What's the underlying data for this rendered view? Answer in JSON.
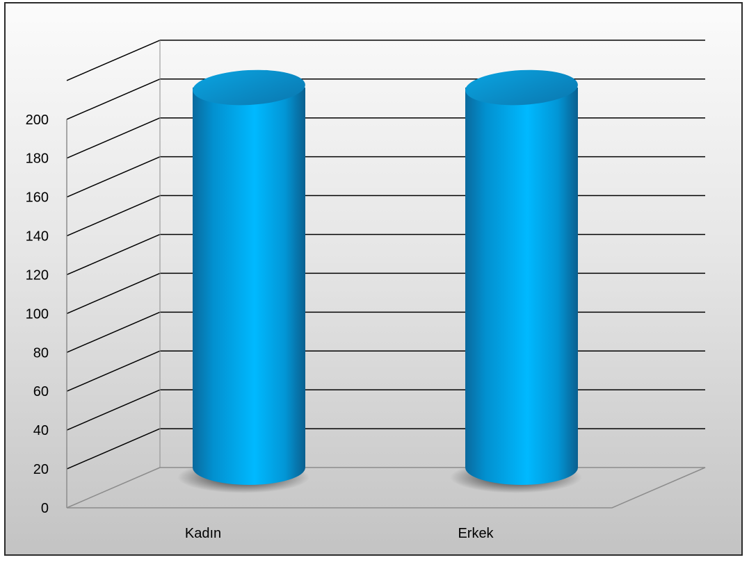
{
  "chart_data": {
    "type": "bar",
    "style": "3d-cylinder",
    "categories": [
      "Kadın",
      "Erkek"
    ],
    "series": [
      {
        "values": [
          206,
          206
        ]
      }
    ],
    "title": "",
    "xlabel": "",
    "ylabel": "",
    "ylim": [
      0,
      200
    ],
    "yticks": [
      "0",
      "20",
      "40",
      "60",
      "80",
      "100",
      "120",
      "140",
      "160",
      "180",
      "200"
    ],
    "grid": true,
    "legend": "none",
    "bar_color": "#00A8E8",
    "grid_color": "#000000"
  }
}
